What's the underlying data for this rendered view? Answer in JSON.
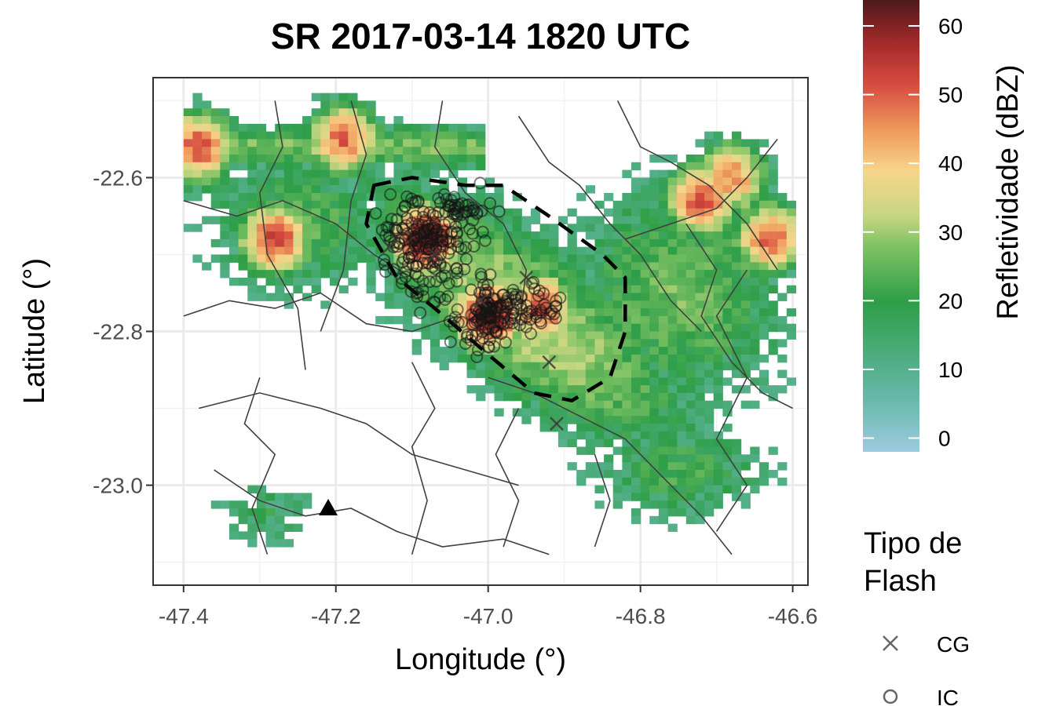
{
  "title": "SR 2017-03-14 1820 UTC",
  "x_axis": {
    "label": "Longitude (°)",
    "range": [
      -47.44,
      -46.58
    ],
    "ticks": [
      -47.4,
      -47.2,
      -47.0,
      -46.8,
      -46.6
    ],
    "tick_labels": [
      "-47.4",
      "-47.2",
      "-47.0",
      "-46.8",
      "-46.6"
    ]
  },
  "y_axis": {
    "label": "Latitude (°)",
    "range": [
      -23.13,
      -22.47
    ],
    "ticks": [
      -22.6,
      -22.8,
      -23.0
    ],
    "tick_labels": [
      "-22.6",
      "-22.8",
      "-23.0"
    ]
  },
  "colorbar": {
    "title": "Refletividade (dBZ)",
    "range": [
      -2,
      64
    ],
    "ticks": [
      0,
      10,
      20,
      30,
      40,
      50,
      60
    ],
    "tick_labels": [
      "0",
      "10",
      "20",
      "30",
      "40",
      "50",
      "60"
    ],
    "colors": [
      "#9ecae1",
      "#66b8a8",
      "#2e9e48",
      "#6aba5c",
      "#b5d27a",
      "#f7d58a",
      "#f0a060",
      "#d64b40",
      "#a52a2a",
      "#4a1a1a"
    ]
  },
  "flash_legend": {
    "title_line1": "Tipo de",
    "title_line2": "Flash",
    "items": [
      {
        "symbol": "x-icon",
        "label": "CG"
      },
      {
        "symbol": "circle-icon",
        "label": "IC"
      }
    ]
  },
  "map_data": {
    "storm_cells": [
      {
        "lon": -47.08,
        "lat": -22.68,
        "peak_dbz": 62
      },
      {
        "lon": -47.0,
        "lat": -22.78,
        "peak_dbz": 62
      },
      {
        "lon": -46.93,
        "lat": -22.77,
        "peak_dbz": 50
      },
      {
        "lon": -47.28,
        "lat": -22.68,
        "peak_dbz": 52
      },
      {
        "lon": -47.38,
        "lat": -22.56,
        "peak_dbz": 50
      },
      {
        "lon": -47.19,
        "lat": -22.55,
        "peak_dbz": 48
      },
      {
        "lon": -46.72,
        "lat": -22.63,
        "peak_dbz": 50
      },
      {
        "lon": -46.63,
        "lat": -22.68,
        "peak_dbz": 48
      },
      {
        "lon": -46.68,
        "lat": -22.6,
        "peak_dbz": 45
      }
    ],
    "tracked_cell_contour": [
      [
        -47.15,
        -22.61
      ],
      [
        -47.1,
        -22.6
      ],
      [
        -47.03,
        -22.61
      ],
      [
        -46.98,
        -22.61
      ],
      [
        -46.92,
        -22.65
      ],
      [
        -46.85,
        -22.7
      ],
      [
        -46.82,
        -22.73
      ],
      [
        -46.82,
        -22.8
      ],
      [
        -46.84,
        -22.86
      ],
      [
        -46.89,
        -22.89
      ],
      [
        -46.94,
        -22.88
      ],
      [
        -47.0,
        -22.83
      ],
      [
        -47.07,
        -22.77
      ],
      [
        -47.12,
        -22.73
      ],
      [
        -47.16,
        -22.66
      ]
    ],
    "radar_site": {
      "lon": -47.21,
      "lat": -23.03
    },
    "cg_flashes": [
      [
        -47.13,
        -22.69
      ],
      [
        -46.92,
        -22.84
      ],
      [
        -46.91,
        -22.92
      ],
      [
        -47.01,
        -22.76
      ],
      [
        -46.95,
        -22.73
      ],
      [
        -47.07,
        -22.7
      ]
    ]
  }
}
